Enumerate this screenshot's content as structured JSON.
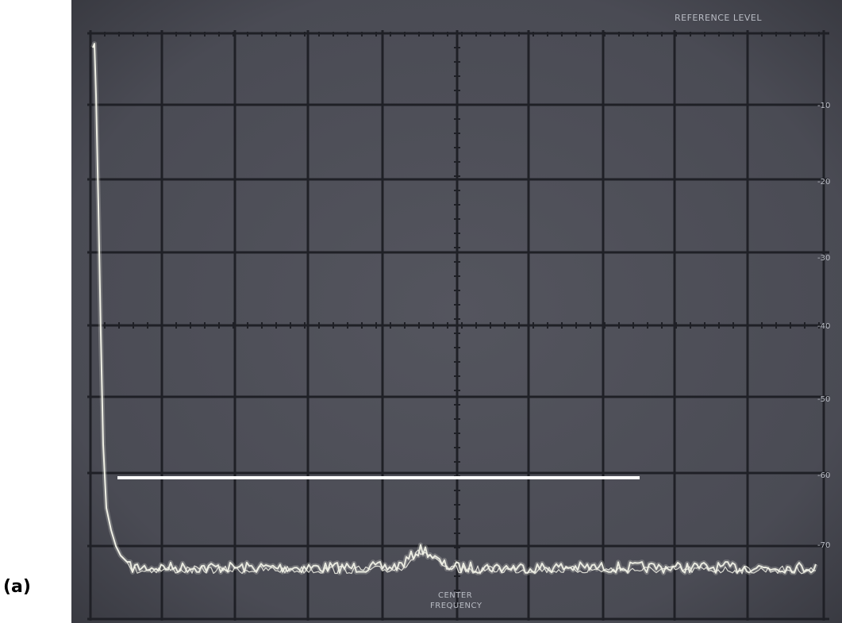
{
  "panel_label": "(a)",
  "screen": {
    "reference_level_label": "REFERENCE LEVEL",
    "center_frequency_label": [
      "CENTER",
      "FREQUENCY"
    ],
    "right_scale_labels": [
      "-10",
      "-20",
      "-30",
      "-40",
      "-50",
      "-60",
      "-70"
    ],
    "colors": {
      "background": "#4b4c55",
      "grid": "#1f2026",
      "trace": "#e8e9df",
      "marker_line": "#ffffff"
    }
  }
}
